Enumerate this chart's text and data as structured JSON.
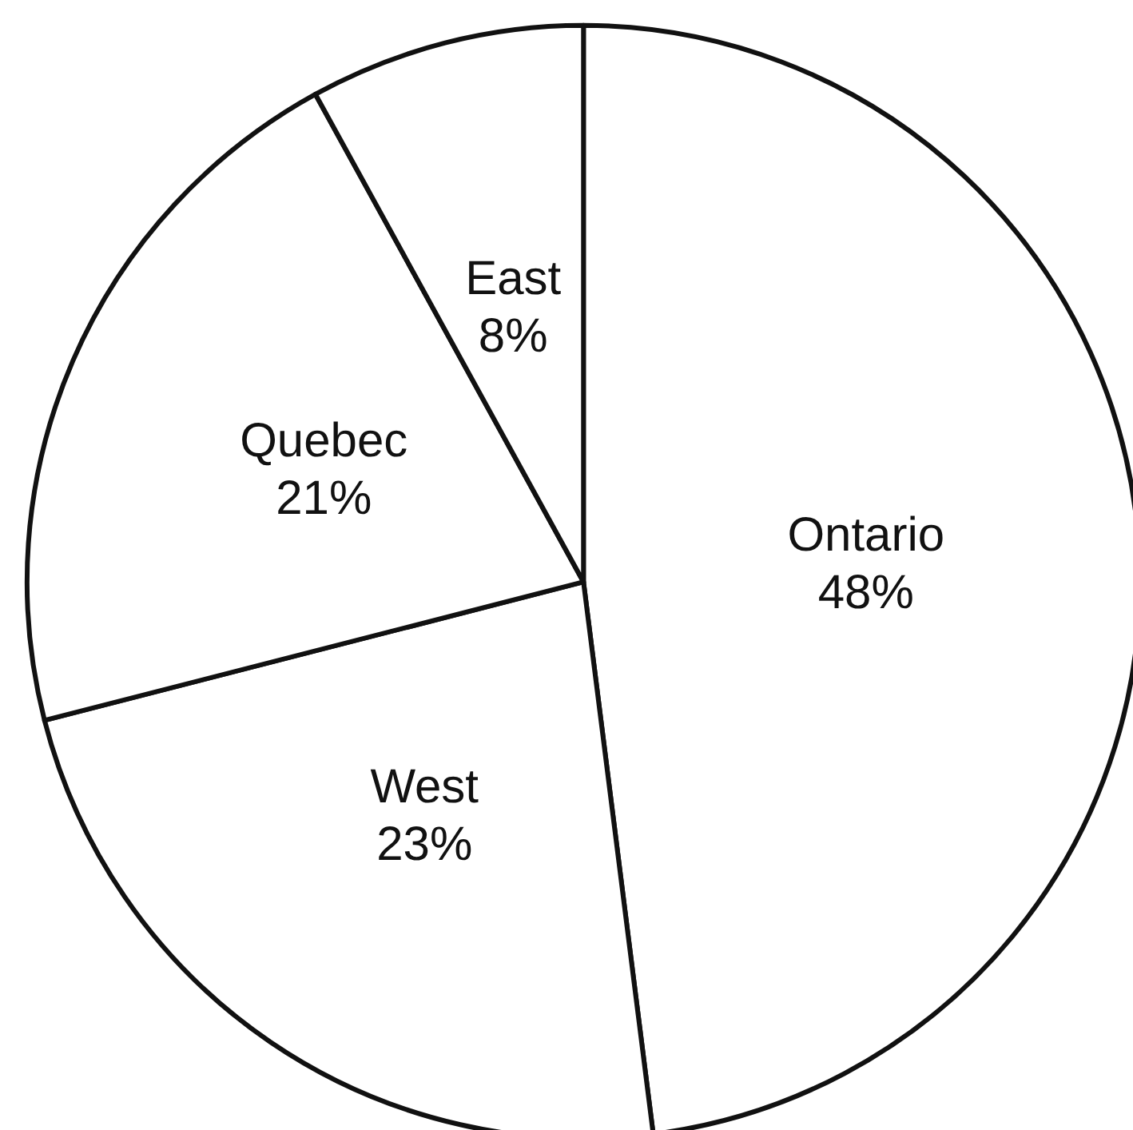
{
  "chart_data": {
    "type": "pie",
    "categories": [
      "Ontario",
      "West",
      "Quebec",
      "East"
    ],
    "values": [
      48,
      23,
      21,
      8
    ],
    "value_labels": [
      "48%",
      "23%",
      "21%",
      "8%"
    ],
    "colors": [
      "#ffffff",
      "#ffffff",
      "#ffffff",
      "#ffffff"
    ]
  }
}
